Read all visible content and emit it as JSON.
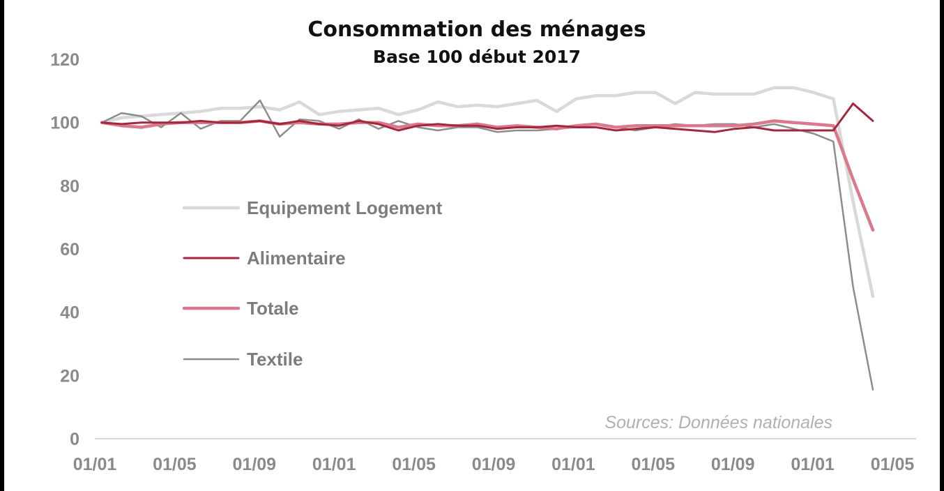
{
  "chart_data": {
    "type": "line",
    "title": "Consommation des ménages",
    "subtitle": "Base 100 début 2017",
    "source": "Sources: Données nationales",
    "xlabel": "",
    "ylabel": "",
    "ylim": [
      0,
      120
    ],
    "yticks": [
      0,
      20,
      40,
      60,
      80,
      100,
      120
    ],
    "xticks": [
      "01/01",
      "01/05",
      "01/09",
      "01/01",
      "01/05",
      "01/09",
      "01/01",
      "01/05",
      "01/09",
      "01/01",
      "01/05"
    ],
    "x": [
      "2017-01",
      "2017-02",
      "2017-03",
      "2017-04",
      "2017-05",
      "2017-06",
      "2017-07",
      "2017-08",
      "2017-09",
      "2017-10",
      "2017-11",
      "2017-12",
      "2018-01",
      "2018-02",
      "2018-03",
      "2018-04",
      "2018-05",
      "2018-06",
      "2018-07",
      "2018-08",
      "2018-09",
      "2018-10",
      "2018-11",
      "2018-12",
      "2019-01",
      "2019-02",
      "2019-03",
      "2019-04",
      "2019-05",
      "2019-06",
      "2019-07",
      "2019-08",
      "2019-09",
      "2019-10",
      "2019-11",
      "2019-12",
      "2020-01",
      "2020-02",
      "2020-03",
      "2020-04"
    ],
    "grid": false,
    "legend_position": "left-center",
    "series": [
      {
        "name": "Equipement Logement",
        "color": "#d9d9d9",
        "values": [
          100,
          101.5,
          102,
          102.5,
          103,
          103.5,
          104.5,
          104.5,
          105,
          104,
          106.5,
          102.5,
          103.5,
          104,
          104.5,
          102.5,
          104,
          106.5,
          105,
          105.5,
          105,
          106,
          107,
          103.5,
          107.5,
          108.5,
          108.5,
          109.5,
          109.5,
          106,
          109.5,
          109,
          109,
          109,
          111,
          111,
          109.5,
          107.5,
          75,
          45
        ]
      },
      {
        "name": "Alimentaire",
        "color": "#a3283d",
        "values": [
          100,
          99.5,
          100,
          100,
          100,
          100.5,
          100,
          100,
          100.5,
          99.5,
          100.5,
          99.5,
          99,
          100.5,
          99.5,
          97.5,
          99,
          99.5,
          99,
          99,
          98,
          98.5,
          98.5,
          99,
          98.5,
          98.5,
          97.5,
          98,
          98.5,
          98,
          97.5,
          97,
          98,
          98.5,
          97.5,
          97.5,
          97.5,
          97.5,
          106,
          100.5
        ]
      },
      {
        "name": "Totale",
        "color": "#d97a8c",
        "values": [
          100,
          99,
          98.5,
          99.5,
          100,
          100,
          100,
          100,
          100.5,
          99.5,
          100,
          99.5,
          99.5,
          100,
          100,
          98.5,
          99.5,
          99,
          99,
          99.5,
          98.5,
          99,
          98.5,
          98,
          99,
          99.5,
          98.5,
          99,
          99,
          99,
          99,
          99,
          99,
          99.5,
          100.5,
          100,
          99.5,
          99,
          82,
          66
        ]
      },
      {
        "name": "Textile",
        "color": "#8c8c8c",
        "values": [
          100,
          103,
          102,
          98.5,
          103,
          98,
          100.5,
          100.5,
          107,
          95.5,
          101,
          100.5,
          98,
          101,
          98,
          100.5,
          98.5,
          97.5,
          98.5,
          98.5,
          97,
          97.5,
          97.5,
          98,
          98.5,
          99.5,
          98.5,
          97.5,
          98.5,
          99.5,
          99,
          99.5,
          99.5,
          98.5,
          99.5,
          98,
          96.5,
          94,
          48,
          15.5
        ]
      }
    ]
  }
}
